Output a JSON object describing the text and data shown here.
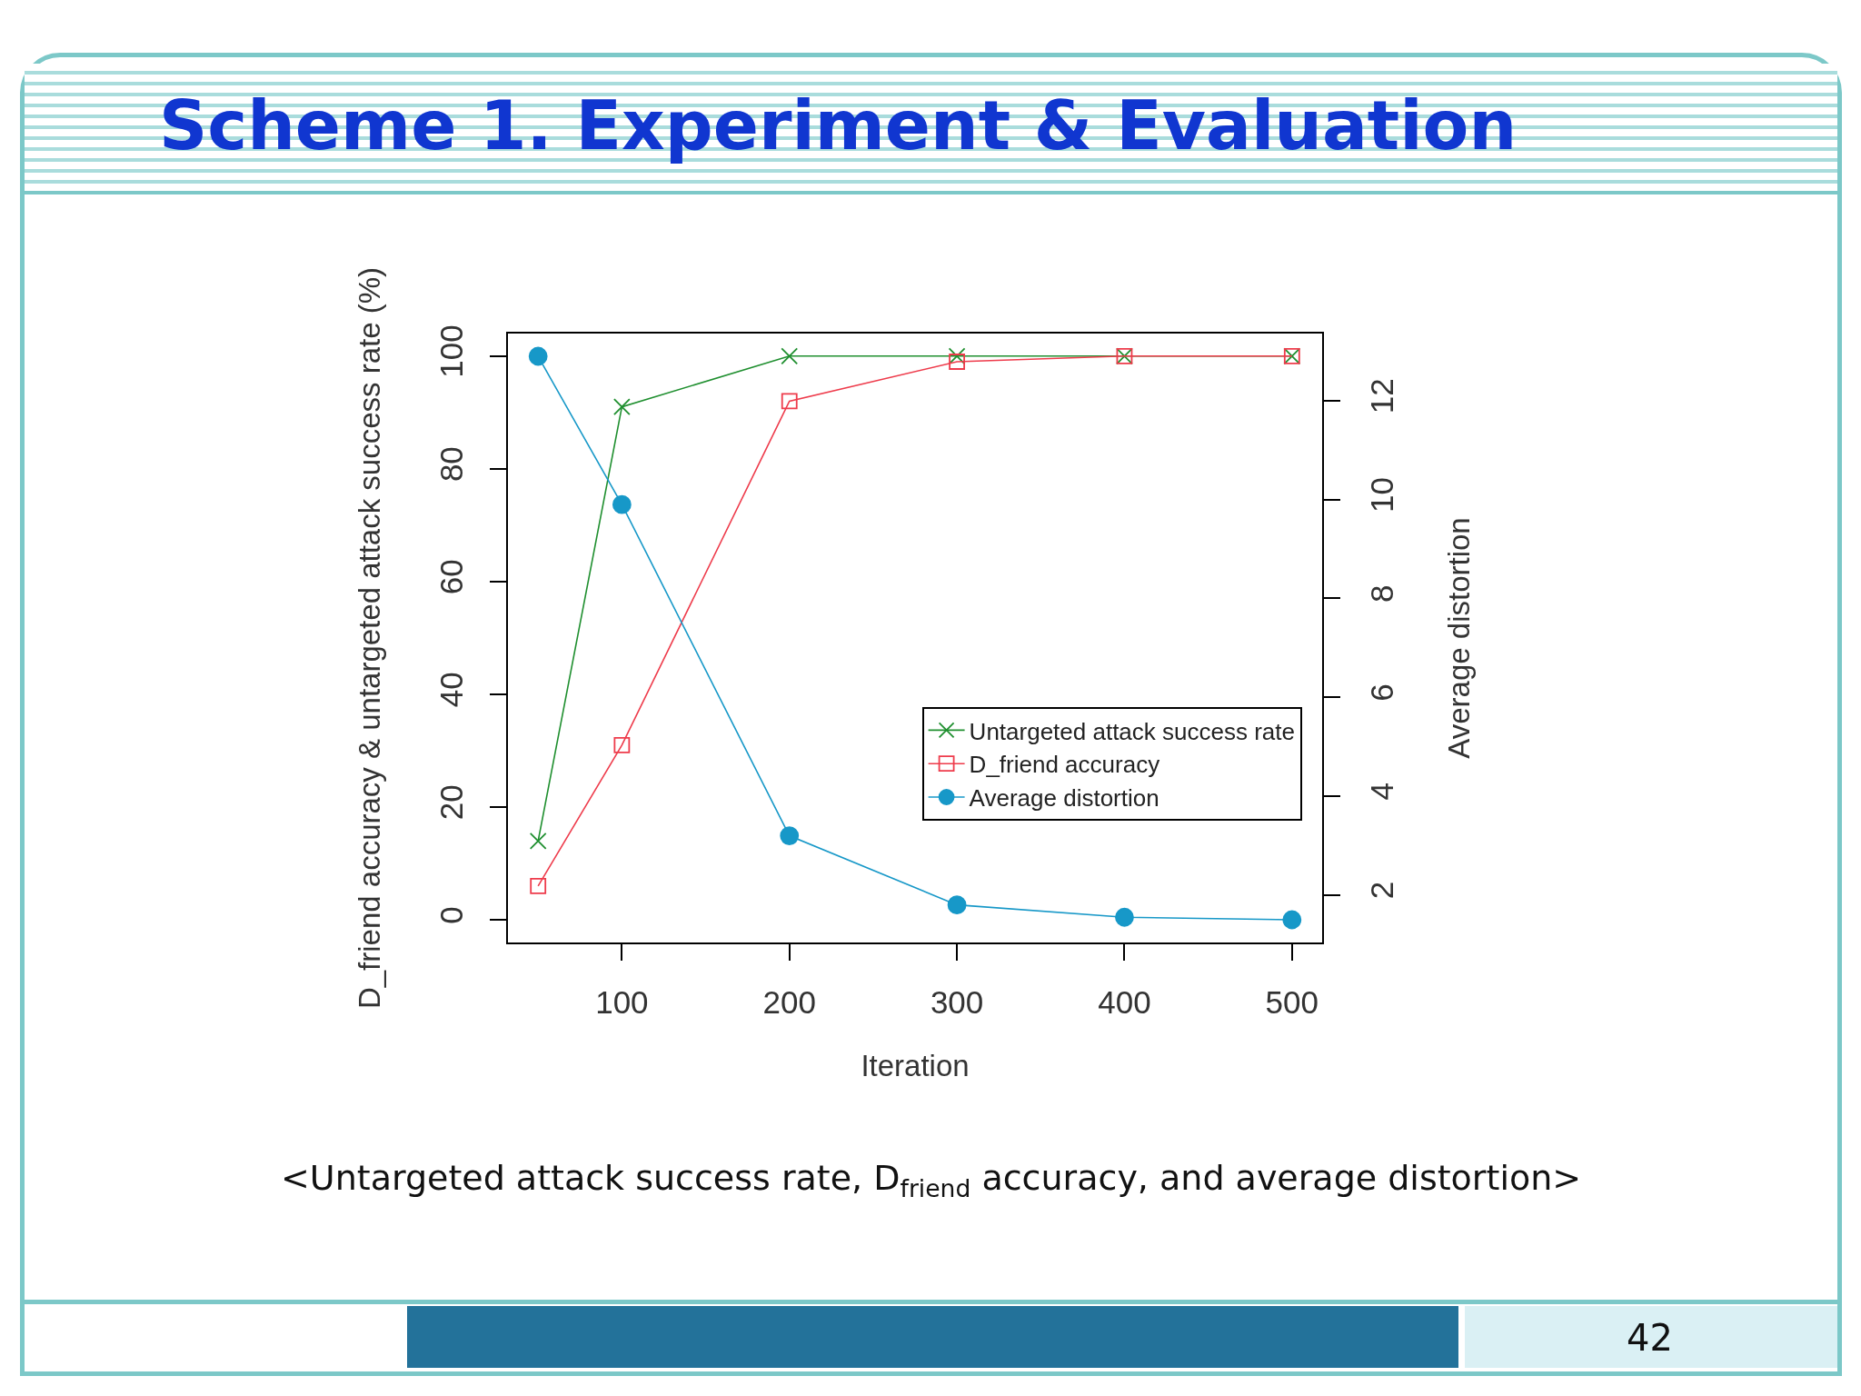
{
  "chart_data": {
    "type": "line",
    "title": "Scheme 1. Experiment & Evaluation",
    "xlabel": "Iteration",
    "ylabel": "D_friend accuracy & untargeted attack success rate (%)",
    "y2label": "Average distortion",
    "x": [
      50,
      100,
      200,
      300,
      400,
      500
    ],
    "series": [
      {
        "name": "Untargeted attack success rate",
        "color": "#1f8f2f",
        "marker": "cross",
        "values": [
          14,
          91,
          100,
          100,
          100,
          100
        ]
      },
      {
        "name": "D_friend accuracy",
        "color": "#ee3b4b",
        "marker": "square",
        "values": [
          6,
          31,
          92,
          99,
          100,
          100
        ]
      },
      {
        "name": "Average distortion",
        "color": "#1798c8",
        "marker": "circle",
        "axis": "y2",
        "values": [
          12.9,
          9.9,
          3.2,
          1.8,
          1.55,
          1.5
        ]
      }
    ],
    "xlim": [
      32,
      518
    ],
    "xticks": [
      100,
      200,
      300,
      400,
      500
    ],
    "ylim": [
      -4,
      104
    ],
    "yticks": [
      0,
      20,
      40,
      60,
      80,
      100
    ],
    "y2lim": [
      1.04,
      13.36
    ],
    "y2ticks": [
      2,
      4,
      6,
      8,
      10,
      12
    ],
    "legend": "bottom right",
    "annotations": [
      "<Untargeted attack success rate, D$_{friend}$ accuracy, and average distortion>",
      "42"
    ]
  }
}
